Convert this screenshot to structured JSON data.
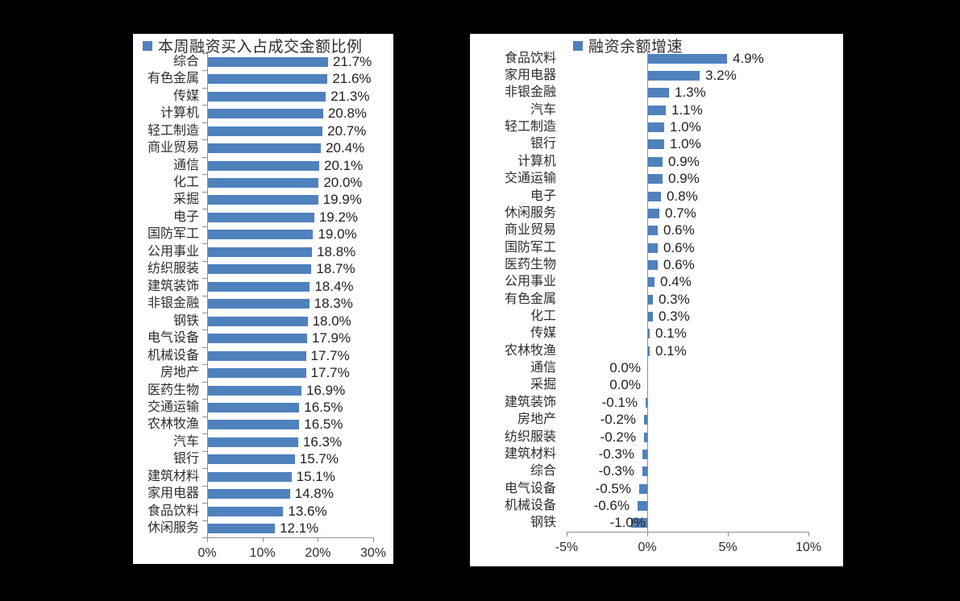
{
  "page": {
    "background_color": "#000000",
    "panel_color": "#ffffff",
    "accent_color": "#4F81BD",
    "axis_color": "#8f8f8f",
    "text_color": "#2d2d2d"
  },
  "chart_data": [
    {
      "type": "bar",
      "orientation": "horizontal",
      "title": "本周融资买入占成交金额比例",
      "legend_position": "top",
      "legend_marker": "square-icon",
      "bar_color": "#4F81BD",
      "grid": false,
      "xlim": [
        0,
        30
      ],
      "x_tick_values": [
        0,
        10,
        20,
        30
      ],
      "x_tick_labels": [
        "0%",
        "10%",
        "20%",
        "30%"
      ],
      "categories": [
        "综合",
        "有色金属",
        "传媒",
        "计算机",
        "轻工制造",
        "商业贸易",
        "通信",
        "化工",
        "采掘",
        "电子",
        "国防军工",
        "公用事业",
        "纺织服装",
        "建筑装饰",
        "非银金融",
        "钢铁",
        "电气设备",
        "机械设备",
        "房地产",
        "医药生物",
        "交通运输",
        "农林牧渔",
        "汽车",
        "银行",
        "建筑材料",
        "家用电器",
        "食品饮料",
        "休闲服务"
      ],
      "values": [
        21.7,
        21.6,
        21.3,
        20.8,
        20.7,
        20.4,
        20.1,
        20.0,
        19.9,
        19.2,
        19.0,
        18.8,
        18.7,
        18.4,
        18.3,
        18.0,
        17.9,
        17.7,
        17.7,
        16.9,
        16.5,
        16.5,
        16.3,
        15.7,
        15.1,
        14.8,
        13.6,
        12.1
      ],
      "value_labels": [
        "21.7%",
        "21.6%",
        "21.3%",
        "20.8%",
        "20.7%",
        "20.4%",
        "20.1%",
        "20.0%",
        "19.9%",
        "19.2%",
        "19.0%",
        "18.8%",
        "18.7%",
        "18.4%",
        "18.3%",
        "18.0%",
        "17.9%",
        "17.7%",
        "17.7%",
        "16.9%",
        "16.5%",
        "16.5%",
        "16.3%",
        "15.7%",
        "15.1%",
        "14.8%",
        "13.6%",
        "12.1%"
      ]
    },
    {
      "type": "bar",
      "orientation": "horizontal",
      "title": "融资余额增速",
      "legend_position": "top",
      "legend_marker": "square-icon",
      "bar_color": "#4F81BD",
      "grid": false,
      "xlim": [
        -5,
        10
      ],
      "x_tick_values": [
        -5,
        0,
        5,
        10
      ],
      "x_tick_labels": [
        "-5%",
        "0%",
        "5%",
        "10%"
      ],
      "categories": [
        "食品饮料",
        "家用电器",
        "非银金融",
        "汽车",
        "轻工制造",
        "银行",
        "计算机",
        "交通运输",
        "电子",
        "休闲服务",
        "商业贸易",
        "国防军工",
        "医药生物",
        "公用事业",
        "有色金属",
        "化工",
        "传媒",
        "农林牧渔",
        "通信",
        "采掘",
        "建筑装饰",
        "房地产",
        "纺织服装",
        "建筑材料",
        "综合",
        "电气设备",
        "机械设备",
        "钢铁"
      ],
      "values": [
        4.9,
        3.2,
        1.3,
        1.1,
        1.0,
        1.0,
        0.9,
        0.9,
        0.8,
        0.7,
        0.6,
        0.6,
        0.6,
        0.4,
        0.3,
        0.3,
        0.1,
        0.1,
        0.0,
        0.0,
        -0.1,
        -0.2,
        -0.2,
        -0.3,
        -0.3,
        -0.5,
        -0.6,
        -1.0
      ],
      "value_labels": [
        "4.9%",
        "3.2%",
        "1.3%",
        "1.1%",
        "1.0%",
        "1.0%",
        "0.9%",
        "0.9%",
        "0.8%",
        "0.7%",
        "0.6%",
        "0.6%",
        "0.6%",
        "0.4%",
        "0.3%",
        "0.3%",
        "0.1%",
        "0.1%",
        "0.0%",
        "0.0%",
        "-0.1%",
        "-0.2%",
        "-0.2%",
        "-0.3%",
        "-0.3%",
        "-0.5%",
        "-0.6%",
        "-1.0%"
      ]
    }
  ]
}
